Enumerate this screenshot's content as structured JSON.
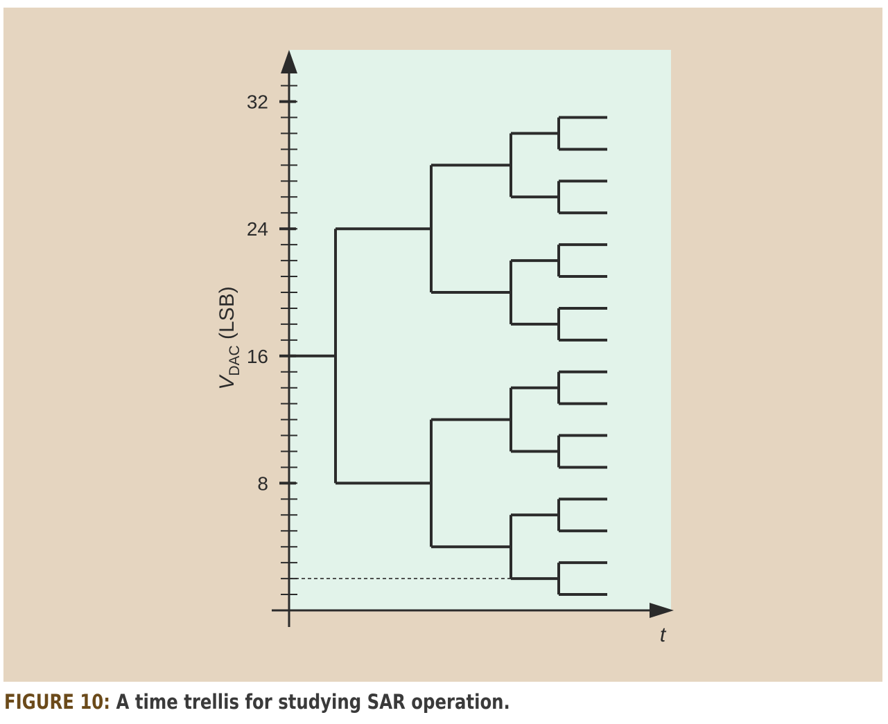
{
  "figure": {
    "label": "FIGURE 10:",
    "caption": "A time trellis for studying SAR operation.",
    "colors": {
      "panel_background": "#e5d5c0",
      "plot_background": "#e2f3ea",
      "line": "#2b2b2b",
      "caption_label": "#6b4a1a"
    }
  },
  "axes": {
    "y_title_main": "V",
    "y_title_sub": "DAC",
    "y_title_suffix": " (LSB)",
    "x_title": "t",
    "y_range": [
      0,
      32
    ],
    "y_major_ticks": [
      {
        "value": 32,
        "label": "32"
      },
      {
        "value": 24,
        "label": "24"
      },
      {
        "value": 16,
        "label": "16"
      },
      {
        "value": 8,
        "label": "8"
      }
    ],
    "y_minor_step": 1
  },
  "trellis": {
    "start_value": 16,
    "steps": 5,
    "dashed_level": 2
  }
}
